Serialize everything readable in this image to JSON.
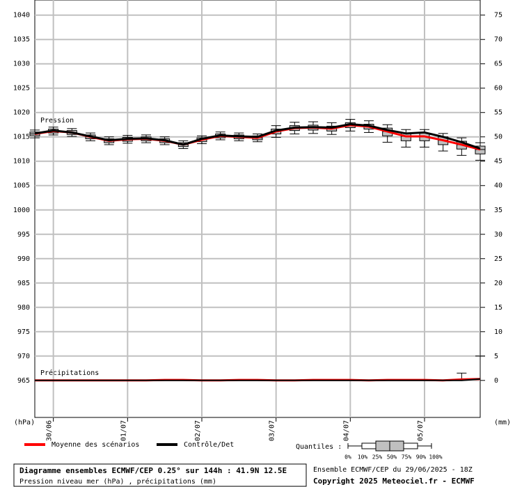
{
  "chart_data": {
    "type": "box",
    "title": "Diagramme ensembles ECMWF/CEP 0.25° sur 144h : 41.9N 12.5E",
    "subtitle": "Pression niveau mer (hPa) , précipitations (mm)",
    "run_info": "Ensemble ECMWF/CEP du 29/06/2025 - 18Z",
    "copyright": "Copyright 2025 Meteociel.fr - ECMWF",
    "ylabel": "(hPa)",
    "y2label": "(mm)",
    "annotations": [
      "Pression",
      "Précipitations"
    ],
    "x": [
      0,
      6,
      12,
      18,
      24,
      30,
      36,
      42,
      48,
      54,
      60,
      66,
      72,
      78,
      84,
      90,
      96,
      102,
      108,
      114,
      120,
      126,
      132,
      138,
      144
    ],
    "xlim": [
      0,
      144
    ],
    "xticks": [
      {
        "value": 6,
        "label": "30/06"
      },
      {
        "value": 30,
        "label": "01/07"
      },
      {
        "value": 54,
        "label": "02/07"
      },
      {
        "value": 78,
        "label": "03/07"
      },
      {
        "value": 102,
        "label": "04/07"
      },
      {
        "value": 126,
        "label": "05/07"
      }
    ],
    "ylim": [
      957.4,
      1043.1
    ],
    "yticks": [
      965,
      970,
      975,
      980,
      985,
      990,
      995,
      1000,
      1005,
      1010,
      1015,
      1020,
      1025,
      1030,
      1035,
      1040
    ],
    "y2lim": [
      -7.6,
      78.1
    ],
    "y2ticks": [
      0,
      5,
      10,
      15,
      20,
      25,
      30,
      35,
      40,
      45,
      50,
      55,
      60,
      65,
      70,
      75
    ],
    "grid": true,
    "series": [
      {
        "name": "Moyenne des scénarios",
        "color": "#ff0000",
        "values": [
          1015.6,
          1016.2,
          1015.9,
          1015.0,
          1014.2,
          1014.5,
          1014.6,
          1014.2,
          1013.4,
          1014.4,
          1015.2,
          1015.0,
          1014.8,
          1016.1,
          1016.8,
          1016.9,
          1016.7,
          1017.4,
          1017.1,
          1016.1,
          1015.1,
          1015.1,
          1014.3,
          1013.4,
          1012.4
        ]
      },
      {
        "name": "Contrôle/Det",
        "color": "#000000",
        "values": [
          1015.7,
          1016.3,
          1015.9,
          1015.1,
          1014.3,
          1014.6,
          1014.7,
          1014.3,
          1013.4,
          1014.6,
          1015.3,
          1015.1,
          1015.0,
          1016.3,
          1016.9,
          1017.0,
          1016.9,
          1017.6,
          1017.3,
          1016.4,
          1015.7,
          1015.9,
          1015.0,
          1013.9,
          1012.6
        ]
      }
    ],
    "quantiles": {
      "label": "Quantiles :",
      "labels": [
        "0%",
        "10%",
        "25%",
        "50%",
        "75%",
        "90%",
        "100%"
      ],
      "box_color": "#c0c0c0",
      "p10": [
        1014.8,
        1015.4,
        1015.1,
        1014.2,
        1013.4,
        1013.7,
        1013.8,
        1013.4,
        1012.6,
        1013.6,
        1014.4,
        1014.2,
        1014.0,
        1014.9,
        1015.6,
        1015.7,
        1015.5,
        1016.2,
        1015.9,
        1013.9,
        1012.9,
        1012.9,
        1012.1,
        1011.2,
        1010.2
      ],
      "p25": [
        1015.2,
        1015.8,
        1015.5,
        1014.6,
        1013.8,
        1014.1,
        1014.2,
        1013.8,
        1013.0,
        1014.0,
        1014.8,
        1014.6,
        1014.4,
        1015.6,
        1016.3,
        1016.4,
        1016.2,
        1016.9,
        1016.6,
        1015.2,
        1014.2,
        1014.2,
        1013.4,
        1012.5,
        1011.5
      ],
      "p75": [
        1016.0,
        1016.6,
        1016.3,
        1015.4,
        1014.6,
        1014.9,
        1015.0,
        1014.6,
        1013.8,
        1014.8,
        1015.6,
        1015.4,
        1015.2,
        1016.6,
        1017.3,
        1017.4,
        1017.2,
        1017.9,
        1017.6,
        1016.8,
        1015.8,
        1015.8,
        1015.0,
        1014.1,
        1013.1
      ],
      "p90": [
        1016.4,
        1017.0,
        1016.7,
        1015.8,
        1015.0,
        1015.3,
        1015.4,
        1015.0,
        1014.2,
        1015.2,
        1016.0,
        1015.8,
        1015.6,
        1017.3,
        1018.0,
        1018.1,
        1017.9,
        1018.6,
        1018.3,
        1017.5,
        1016.5,
        1016.5,
        1015.7,
        1014.8,
        1013.8
      ]
    },
    "precipitation": {
      "axis": "y2",
      "mean": [
        0,
        0,
        0,
        0,
        0,
        0,
        0,
        0.1,
        0.1,
        0,
        0,
        0.1,
        0.1,
        0,
        0,
        0.1,
        0.1,
        0.1,
        0,
        0.1,
        0.1,
        0.1,
        0,
        0.2,
        0.3
      ],
      "control": [
        0,
        0,
        0,
        0,
        0,
        0,
        0,
        0,
        0,
        0,
        0,
        0,
        0,
        0,
        0,
        0,
        0,
        0,
        0,
        0,
        0,
        0,
        0,
        0,
        0.3
      ],
      "p90": [
        0,
        0,
        0,
        0,
        0,
        0,
        0,
        0,
        0,
        0,
        0,
        0,
        0,
        0,
        0,
        0,
        0,
        0,
        0,
        0,
        0,
        0,
        0,
        1.5,
        5.0
      ]
    }
  }
}
